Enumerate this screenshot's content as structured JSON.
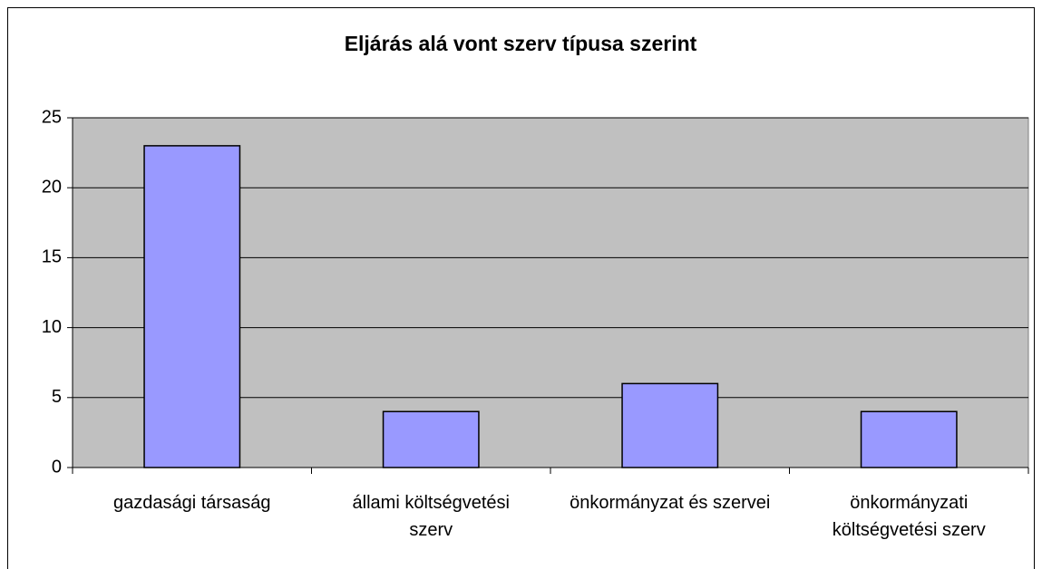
{
  "chart_data": {
    "type": "bar",
    "title": "Eljárás alá vont szerv típusa szerint",
    "categories": [
      "gazdasági társaság",
      "állami költségvetési szerv",
      "önkormányzat és szervei",
      "önkormányzati költségvetési szerv"
    ],
    "values": [
      23,
      4,
      6,
      4
    ],
    "color": "#9999ff",
    "ylim": [
      0,
      25
    ],
    "yticks": [
      0,
      5,
      10,
      15,
      20,
      25
    ],
    "grid": true
  }
}
